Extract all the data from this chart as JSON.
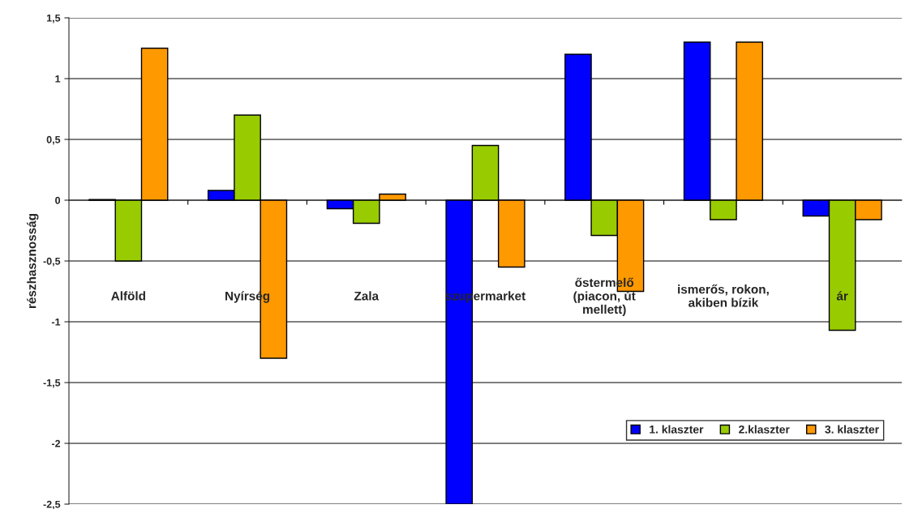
{
  "chart_data": {
    "type": "bar",
    "ylabel": "részhasznosság",
    "categories": [
      "Alföld",
      "Nyírség",
      "Zala",
      "szupermarket",
      "őstermelő\n(piacon, út\nmellett)",
      "ismerős, rokon,\nakiben bízik",
      "ár"
    ],
    "series": [
      {
        "name": "1. klaszter",
        "color": "#0000ff",
        "values": [
          0.005,
          0.08,
          -0.07,
          -2.5,
          1.2,
          1.3,
          -0.13
        ]
      },
      {
        "name": "2.klaszter",
        "color": "#99cc00",
        "values": [
          -0.5,
          0.7,
          -0.19,
          0.45,
          -0.29,
          -0.16,
          -1.07
        ]
      },
      {
        "name": "3. klaszter",
        "color": "#ff9900",
        "values": [
          1.25,
          -1.3,
          0.05,
          -0.55,
          -0.75,
          1.3,
          -0.16
        ]
      }
    ],
    "ylim": [
      -2.5,
      1.5
    ],
    "yticks": [
      {
        "value": -2.5,
        "label": "-2,5"
      },
      {
        "value": -2,
        "label": "-2"
      },
      {
        "value": -1.5,
        "label": "-1,5"
      },
      {
        "value": -1,
        "label": "-1"
      },
      {
        "value": -0.5,
        "label": "-0,5"
      },
      {
        "value": 0,
        "label": "0"
      },
      {
        "value": 0.5,
        "label": "0,5"
      },
      {
        "value": 1,
        "label": "1"
      },
      {
        "value": 1.5,
        "label": "1,5"
      }
    ],
    "grid": "y",
    "legend": "bottom right"
  }
}
